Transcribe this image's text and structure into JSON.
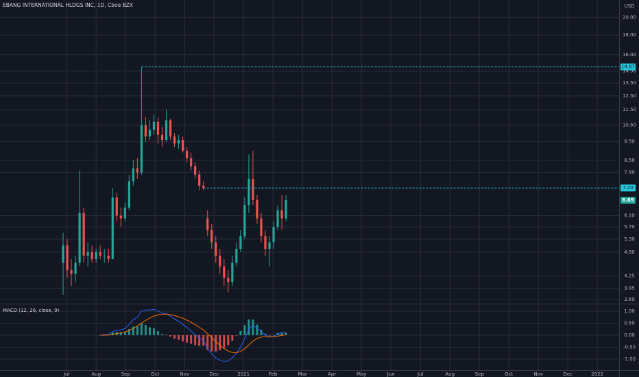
{
  "chart_data": {
    "type": "candlestick",
    "title": "EBANG INTERNATIONAL HLDGS INC, 1D, Cboe BZX",
    "y_unit": "USD",
    "log_scale": true,
    "grid": true,
    "up_color": "#26a69a",
    "down_color": "#ef5350",
    "level_color": "#26c6da",
    "x": [
      -0.12,
      0.02,
      0.16,
      0.3,
      0.44,
      0.58,
      0.72,
      0.86,
      1.0,
      1.14,
      1.28,
      1.42,
      1.56,
      1.7,
      1.84,
      1.98,
      2.12,
      2.26,
      2.4,
      2.54,
      2.68,
      2.82,
      2.96,
      3.1,
      3.24,
      3.38,
      3.52,
      3.66,
      3.8,
      3.94,
      4.08,
      4.22,
      4.36,
      4.5,
      4.64,
      4.78,
      4.92,
      5.06,
      5.2,
      5.34,
      5.48,
      5.62,
      5.76,
      5.9,
      6.04,
      6.18,
      6.32,
      6.46,
      6.6,
      6.74,
      6.88,
      7.02,
      7.16,
      7.3,
      7.44
    ],
    "open": [
      4.6,
      5.1,
      4.4,
      4.3,
      4.6,
      6.2,
      4.8,
      4.9,
      4.7,
      4.9,
      4.8,
      4.8,
      4.7,
      6.8,
      6.1,
      6.0,
      6.4,
      7.5,
      8.1,
      7.9,
      10.5,
      9.8,
      10.2,
      10.7,
      9.9,
      9.6,
      10.8,
      9.8,
      9.4,
      9.6,
      9.0,
      8.6,
      8.2,
      7.8,
      7.3,
      6.0,
      5.6,
      5.2,
      4.8,
      4.5,
      4.2,
      4.1,
      4.6,
      5.0,
      5.4,
      6.5,
      7.6,
      6.7,
      6.0,
      5.4,
      5.0,
      5.2,
      5.7,
      6.3,
      6.0
    ],
    "high": [
      5.5,
      5.3,
      4.7,
      4.8,
      8.0,
      6.4,
      5.2,
      5.1,
      5.0,
      5.1,
      5.0,
      5.0,
      7.2,
      7.0,
      6.4,
      6.6,
      7.8,
      8.5,
      8.6,
      14.87,
      11.0,
      10.8,
      11.2,
      11.0,
      10.4,
      11.5,
      10.9,
      10.0,
      9.9,
      9.8,
      9.2,
      8.9,
      8.4,
      8.0,
      7.5,
      6.3,
      5.8,
      5.4,
      5.0,
      4.7,
      4.4,
      4.8,
      5.2,
      5.6,
      6.8,
      8.8,
      9.0,
      6.9,
      6.2,
      5.6,
      5.4,
      5.9,
      6.5,
      6.9,
      6.9
    ],
    "low": [
      3.8,
      4.2,
      4.0,
      4.1,
      4.5,
      4.6,
      4.5,
      4.6,
      4.6,
      4.7,
      4.6,
      4.6,
      4.7,
      5.9,
      5.7,
      5.9,
      6.3,
      7.3,
      7.6,
      7.8,
      9.5,
      9.6,
      9.9,
      9.4,
      9.2,
      9.5,
      9.6,
      9.2,
      9.1,
      8.9,
      8.4,
      8.0,
      7.6,
      7.1,
      7.1,
      5.4,
      5.0,
      4.6,
      4.3,
      4.0,
      3.85,
      4.0,
      4.5,
      4.9,
      5.3,
      6.2,
      6.5,
      5.8,
      5.2,
      4.8,
      4.5,
      5.0,
      5.6,
      5.6,
      5.9
    ],
    "close": [
      5.1,
      4.4,
      4.3,
      4.6,
      6.2,
      4.8,
      4.9,
      4.7,
      4.9,
      4.8,
      4.8,
      4.7,
      6.8,
      6.1,
      6.0,
      6.4,
      7.5,
      8.1,
      7.9,
      10.5,
      9.8,
      10.2,
      10.7,
      9.9,
      9.6,
      10.8,
      9.8,
      9.4,
      9.6,
      9.0,
      8.6,
      8.2,
      7.8,
      7.3,
      7.2,
      5.6,
      5.2,
      4.8,
      4.5,
      4.2,
      4.1,
      4.6,
      5.0,
      5.4,
      6.5,
      7.6,
      6.7,
      6.0,
      5.4,
      5.0,
      5.2,
      5.7,
      6.3,
      6.0,
      6.69
    ],
    "xlim": [
      -2.26,
      18.74
    ],
    "xticks": [
      {
        "value": 0,
        "label": "Jul"
      },
      {
        "value": 1,
        "label": "Aug"
      },
      {
        "value": 2,
        "label": "Sep"
      },
      {
        "value": 3,
        "label": "Oct"
      },
      {
        "value": 4,
        "label": "Nov"
      },
      {
        "value": 5,
        "label": "Dec"
      },
      {
        "value": 6,
        "label": "2021"
      },
      {
        "value": 7,
        "label": "Feb"
      },
      {
        "value": 8,
        "label": "Mar"
      },
      {
        "value": 9,
        "label": "Apr"
      },
      {
        "value": 10,
        "label": "May"
      },
      {
        "value": 11,
        "label": "Jun"
      },
      {
        "value": 12,
        "label": "Jul"
      },
      {
        "value": 13,
        "label": "Aug"
      },
      {
        "value": 14,
        "label": "Sep"
      },
      {
        "value": 15,
        "label": "Oct"
      },
      {
        "value": 16,
        "label": "Nov"
      },
      {
        "value": 17,
        "label": "Dec"
      },
      {
        "value": 18,
        "label": "2022"
      }
    ],
    "ylim": [
      3.6,
      22.2
    ],
    "yticks": [
      {
        "value": 20,
        "label": "20.00"
      },
      {
        "value": 18,
        "label": "18.00"
      },
      {
        "value": 16,
        "label": "16.00"
      },
      {
        "value": 14.5,
        "label": "14.50"
      },
      {
        "value": 13.5,
        "label": "13.50"
      },
      {
        "value": 12.5,
        "label": "12.50"
      },
      {
        "value": 11.5,
        "label": "11.50"
      },
      {
        "value": 10.5,
        "label": "10.50"
      },
      {
        "value": 9.5,
        "label": "9.50"
      },
      {
        "value": 8.5,
        "label": "8.50"
      },
      {
        "value": 7.9,
        "label": "7.90"
      },
      {
        "value": 6.1,
        "label": "6.10"
      },
      {
        "value": 5.7,
        "label": "5.70"
      },
      {
        "value": 5.3,
        "label": "5.30"
      },
      {
        "value": 4.9,
        "label": "4.90"
      },
      {
        "value": 4.25,
        "label": "4.25"
      },
      {
        "value": 3.95,
        "label": "3.95"
      },
      {
        "value": 3.69,
        "label": "3.69"
      }
    ],
    "levels": [
      {
        "y": 14.87,
        "x": 2.54
      },
      {
        "y": {
          "value": 7.2,
          "label": "7.20"
        },
        "x": 4.64
      }
    ],
    "last_price": 6.69,
    "macd": {
      "title": "MACD (12, 26, close, 9)",
      "ylim": [
        -1.46,
        1.26
      ],
      "yticks": [
        {
          "value": 1,
          "label": "1.00"
        },
        {
          "value": 0.5,
          "label": "0.50"
        },
        {
          "value": 0,
          "label": "0.00"
        },
        {
          "value": -0.5,
          "label": "-0.50"
        },
        {
          "value": -1,
          "label": "-1.00"
        }
      ],
      "line": {
        "color": "#2962ff",
        "values": [
          null,
          null,
          null,
          null,
          null,
          null,
          null,
          null,
          null,
          0.0,
          0.02,
          0.03,
          0.15,
          0.2,
          0.22,
          0.28,
          0.45,
          0.65,
          0.75,
          1.0,
          1.05,
          1.05,
          1.08,
          1.02,
          0.92,
          0.9,
          0.8,
          0.68,
          0.58,
          0.45,
          0.32,
          0.18,
          0.02,
          -0.12,
          -0.22,
          -0.55,
          -0.78,
          -0.95,
          -1.05,
          -1.1,
          -1.08,
          -0.95,
          -0.75,
          -0.5,
          -0.15,
          0.25,
          0.4,
          0.3,
          0.15,
          0.0,
          -0.08,
          -0.05,
          0.05,
          0.1,
          0.12
        ]
      },
      "signal": {
        "color": "#ff6d00",
        "values": [
          null,
          null,
          null,
          null,
          null,
          null,
          null,
          null,
          null,
          0.0,
          0.0,
          0.01,
          0.04,
          0.07,
          0.1,
          0.13,
          0.2,
          0.29,
          0.38,
          0.5,
          0.62,
          0.72,
          0.8,
          0.85,
          0.87,
          0.88,
          0.86,
          0.82,
          0.77,
          0.71,
          0.63,
          0.54,
          0.44,
          0.33,
          0.22,
          0.07,
          -0.1,
          -0.27,
          -0.42,
          -0.56,
          -0.66,
          -0.72,
          -0.73,
          -0.68,
          -0.57,
          -0.41,
          -0.25,
          -0.14,
          -0.08,
          -0.06,
          -0.06,
          -0.06,
          -0.04,
          -0.01,
          0.02
        ]
      },
      "histogram": {
        "values": [
          null,
          null,
          null,
          null,
          null,
          null,
          null,
          null,
          null,
          0.0,
          0.02,
          0.02,
          0.11,
          0.13,
          0.12,
          0.15,
          0.25,
          0.36,
          0.37,
          0.5,
          0.43,
          0.33,
          0.28,
          0.17,
          0.05,
          0.02,
          -0.06,
          -0.14,
          -0.19,
          -0.26,
          -0.31,
          -0.36,
          -0.42,
          -0.45,
          -0.44,
          -0.62,
          -0.68,
          -0.68,
          -0.63,
          -0.54,
          -0.42,
          -0.23,
          -0.02,
          0.18,
          0.42,
          0.66,
          0.65,
          0.44,
          0.23,
          0.06,
          -0.02,
          0.01,
          0.09,
          0.11,
          0.1
        ]
      }
    }
  }
}
